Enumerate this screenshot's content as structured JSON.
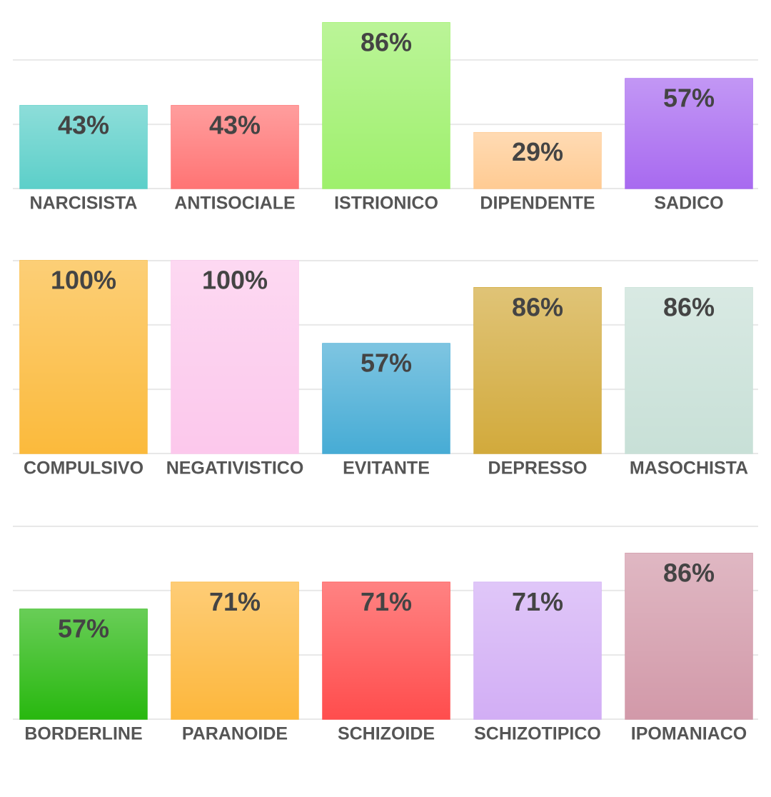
{
  "chart_data": [
    {
      "type": "bar",
      "categories": [
        "NARCISISTA",
        "ANTISOCIALE",
        "ISTRIONICO",
        "DIPENDENTE",
        "SADICO"
      ],
      "values": [
        43,
        43,
        86,
        29,
        57
      ],
      "value_labels": [
        "43%",
        "43%",
        "86%",
        "29%",
        "57%"
      ],
      "colors": [
        "#5ccfc9",
        "#ff7474",
        "#9ef06c",
        "#ffcb93",
        "#a86af0"
      ],
      "ylim": [
        0,
        100
      ],
      "yticks": [
        0,
        33.3,
        66.7,
        100
      ],
      "grid": true
    },
    {
      "type": "bar",
      "categories": [
        "COMPULSIVO",
        "NEGATIVISTICO",
        "EVITANTE",
        "DEPRESSO",
        "MASOCHISTA"
      ],
      "values": [
        100,
        100,
        57,
        86,
        86
      ],
      "value_labels": [
        "100%",
        "100%",
        "57%",
        "86%",
        "86%"
      ],
      "colors": [
        "#fbba3c",
        "#fcc8ec",
        "#47acd5",
        "#d2aa3c",
        "#c8e0d7"
      ],
      "ylim": [
        0,
        100
      ],
      "yticks": [
        0,
        33.3,
        66.7,
        100
      ],
      "grid": true
    },
    {
      "type": "bar",
      "categories": [
        "BORDERLINE",
        "PARANOIDE",
        "SCHIZOIDE",
        "SCHIZOTIPICO",
        "IPOMANIACO"
      ],
      "values": [
        57,
        71,
        71,
        71,
        86
      ],
      "value_labels": [
        "57%",
        "71%",
        "71%",
        "71%",
        "86%"
      ],
      "colors": [
        "#28b80f",
        "#fdb73c",
        "#ff4d4d",
        "#d2aef5",
        "#d299a9"
      ],
      "ylim": [
        0,
        100
      ],
      "yticks": [
        0,
        33.3,
        66.7,
        100
      ],
      "grid": true
    }
  ]
}
